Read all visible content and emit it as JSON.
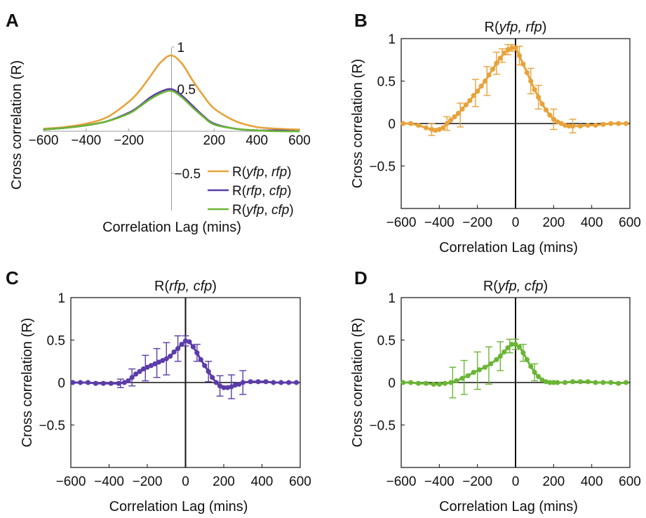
{
  "panels": {
    "A": "A",
    "B": "B",
    "C": "C",
    "D": "D"
  },
  "colors": {
    "yfp_rfp": "#E8A23A",
    "rfp_cfp": "#5B3CA8",
    "yfp_cfp": "#6BB536",
    "axis": "#111111"
  },
  "chart_data": [
    {
      "panel": "A",
      "type": "line",
      "title": "",
      "xlabel": "Correlation Lag (mins)",
      "ylabel": "Cross correlation (R)",
      "xlim": [
        -600,
        600
      ],
      "ylim": [
        -1,
        1
      ],
      "xticks": [
        "−600",
        "−400",
        "−200",
        "200",
        "400",
        "600"
      ],
      "yticks": [
        "1",
        "0.5",
        "−0.5"
      ],
      "axes_through_origin": true,
      "legend": {
        "placement": "bottom-right",
        "entries": [
          {
            "prefix": "R(",
            "a": "yfp",
            "b": "rfp",
            "suffix": ")",
            "color_key": "yfp_rfp"
          },
          {
            "prefix": "R(",
            "a": "rfp",
            "b": "cfp",
            "suffix": ")",
            "color_key": "rfp_cfp"
          },
          {
            "prefix": "R(",
            "a": "yfp",
            "b": "cfp",
            "suffix": ")",
            "color_key": "yfp_cfp"
          }
        ]
      },
      "series": [
        {
          "color_key": "yfp_rfp",
          "x": [
            -600,
            -500,
            -400,
            -300,
            -200,
            -150,
            -100,
            -50,
            0,
            50,
            100,
            150,
            200,
            300,
            400,
            500,
            600
          ],
          "y": [
            0.03,
            0.05,
            0.09,
            0.17,
            0.35,
            0.48,
            0.65,
            0.82,
            0.9,
            0.8,
            0.6,
            0.42,
            0.27,
            0.12,
            0.05,
            0.03,
            0.02
          ]
        },
        {
          "color_key": "rfp_cfp",
          "x": [
            -600,
            -500,
            -400,
            -300,
            -200,
            -150,
            -100,
            -50,
            0,
            50,
            100,
            150,
            200,
            300,
            400,
            500,
            600
          ],
          "y": [
            0.02,
            0.04,
            0.07,
            0.12,
            0.22,
            0.3,
            0.4,
            0.47,
            0.5,
            0.42,
            0.3,
            0.18,
            0.09,
            0.03,
            0.01,
            0.01,
            0.0
          ]
        },
        {
          "color_key": "yfp_cfp",
          "x": [
            -600,
            -500,
            -400,
            -300,
            -200,
            -150,
            -100,
            -50,
            0,
            50,
            100,
            150,
            200,
            300,
            400,
            500,
            600
          ],
          "y": [
            0.02,
            0.04,
            0.07,
            0.12,
            0.21,
            0.29,
            0.38,
            0.45,
            0.48,
            0.4,
            0.28,
            0.17,
            0.08,
            0.03,
            0.01,
            0.0,
            0.0
          ]
        }
      ]
    },
    {
      "panel": "B",
      "type": "scatter",
      "title_prefix": "R(",
      "title_a": "yfp",
      "title_b": "rfp",
      "title_suffix": ")",
      "xlabel": "Correlation Lag (mins)",
      "ylabel": "Cross correlation (R)",
      "xlim": [
        -600,
        600
      ],
      "ylim": [
        -1,
        1
      ],
      "xticks": [
        "−600",
        "−400",
        "−200",
        "0",
        "200",
        "400",
        "600"
      ],
      "yticks": [
        "1",
        "0.5",
        "0",
        "−0.5"
      ],
      "color_key": "yfp_rfp",
      "points": {
        "x": [
          -590,
          -550,
          -510,
          -470,
          -440,
          -420,
          -400,
          -380,
          -360,
          -340,
          -320,
          -300,
          -280,
          -260,
          -240,
          -220,
          -200,
          -180,
          -160,
          -140,
          -120,
          -100,
          -80,
          -60,
          -40,
          -20,
          0,
          20,
          40,
          60,
          80,
          100,
          120,
          140,
          160,
          180,
          200,
          220,
          240,
          260,
          280,
          300,
          340,
          380,
          420,
          460,
          500,
          540,
          580
        ],
        "y": [
          0.0,
          0.0,
          -0.02,
          -0.05,
          -0.07,
          -0.08,
          -0.07,
          -0.05,
          0.0,
          0.04,
          0.08,
          0.12,
          0.17,
          0.22,
          0.27,
          0.33,
          0.38,
          0.44,
          0.5,
          0.57,
          0.64,
          0.71,
          0.77,
          0.83,
          0.87,
          0.89,
          0.89,
          0.8,
          0.7,
          0.6,
          0.5,
          0.4,
          0.31,
          0.23,
          0.16,
          0.1,
          0.05,
          0.02,
          0.0,
          -0.02,
          -0.03,
          -0.03,
          -0.03,
          -0.02,
          -0.02,
          -0.01,
          0.0,
          0.0,
          0.0
        ]
      },
      "error_bars": {
        "x": [
          -440,
          -360,
          -290,
          -210,
          -150,
          -100,
          -70,
          -40,
          -20,
          20,
          80,
          120,
          200,
          300
        ],
        "y": [
          -0.07,
          0.0,
          0.1,
          0.36,
          0.5,
          0.71,
          0.8,
          0.87,
          0.89,
          0.8,
          0.5,
          0.31,
          0.05,
          -0.03
        ],
        "err": [
          0.07,
          0.08,
          0.14,
          0.16,
          0.17,
          0.13,
          0.08,
          0.06,
          0.04,
          0.11,
          0.15,
          0.14,
          0.12,
          0.08
        ]
      }
    },
    {
      "panel": "C",
      "type": "scatter",
      "title_prefix": "R(",
      "title_a": "rfp",
      "title_b": "cfp",
      "title_suffix": ")",
      "xlabel": "Correlation Lag (mins)",
      "ylabel": "Cross correlation (R)",
      "xlim": [
        -600,
        600
      ],
      "ylim": [
        -1,
        1
      ],
      "xticks": [
        "−600",
        "−400",
        "−200",
        "0",
        "200",
        "400",
        "600"
      ],
      "yticks": [
        "1",
        "0.5",
        "0",
        "−0.5"
      ],
      "color_key": "rfp_cfp",
      "points": {
        "x": [
          -590,
          -550,
          -510,
          -470,
          -430,
          -390,
          -350,
          -320,
          -300,
          -280,
          -260,
          -240,
          -220,
          -200,
          -180,
          -160,
          -140,
          -120,
          -100,
          -80,
          -60,
          -40,
          -20,
          0,
          20,
          40,
          60,
          80,
          100,
          120,
          140,
          160,
          180,
          200,
          220,
          240,
          260,
          280,
          300,
          340,
          380,
          420,
          460,
          500,
          540,
          580
        ],
        "y": [
          0.0,
          0.0,
          0.0,
          -0.01,
          -0.01,
          -0.01,
          -0.01,
          0.0,
          0.02,
          0.06,
          0.1,
          0.13,
          0.16,
          0.18,
          0.2,
          0.22,
          0.24,
          0.26,
          0.28,
          0.31,
          0.36,
          0.4,
          0.45,
          0.49,
          0.48,
          0.42,
          0.35,
          0.27,
          0.2,
          0.13,
          0.06,
          0.0,
          -0.04,
          -0.06,
          -0.06,
          -0.05,
          -0.03,
          -0.02,
          0.0,
          0.01,
          0.01,
          0.01,
          0.0,
          0.0,
          0.0,
          0.0
        ]
      },
      "error_bars": {
        "x": [
          -340,
          -280,
          -210,
          -150,
          -100,
          -40,
          0,
          60,
          120,
          180,
          240,
          300
        ],
        "y": [
          -0.01,
          0.06,
          0.17,
          0.23,
          0.28,
          0.4,
          0.49,
          0.35,
          0.13,
          -0.04,
          -0.05,
          0.0
        ],
        "err": [
          0.05,
          0.1,
          0.15,
          0.17,
          0.19,
          0.15,
          0.06,
          0.1,
          0.12,
          0.12,
          0.14,
          0.14
        ]
      }
    },
    {
      "panel": "D",
      "type": "scatter",
      "title_prefix": "R(",
      "title_a": "yfp",
      "title_b": "cfp",
      "title_suffix": ")",
      "xlabel": "Correlation Lag (mins)",
      "ylabel": "Cross correlation (R)",
      "xlim": [
        -600,
        600
      ],
      "ylim": [
        -1,
        1
      ],
      "xticks": [
        "−600",
        "−400",
        "−200",
        "0",
        "200",
        "400",
        "600"
      ],
      "yticks": [
        "1",
        "0.5",
        "0",
        "−0.5"
      ],
      "color_key": "yfp_cfp",
      "points": {
        "x": [
          -590,
          -550,
          -510,
          -470,
          -430,
          -400,
          -370,
          -340,
          -310,
          -280,
          -250,
          -220,
          -190,
          -160,
          -130,
          -100,
          -80,
          -60,
          -40,
          -20,
          0,
          20,
          40,
          60,
          80,
          100,
          120,
          140,
          160,
          180,
          200,
          220,
          260,
          300,
          340,
          380,
          420,
          460,
          500,
          540,
          580
        ],
        "y": [
          0.0,
          0.0,
          -0.01,
          -0.01,
          -0.02,
          -0.02,
          -0.01,
          0.0,
          0.02,
          0.05,
          0.08,
          0.12,
          0.15,
          0.18,
          0.22,
          0.27,
          0.31,
          0.36,
          0.41,
          0.45,
          0.45,
          0.42,
          0.35,
          0.27,
          0.19,
          0.12,
          0.07,
          0.03,
          0.01,
          0.0,
          0.0,
          0.0,
          0.0,
          0.01,
          0.01,
          0.01,
          0.0,
          0.0,
          0.0,
          -0.01,
          0.0
        ]
      },
      "error_bars": {
        "x": [
          -330,
          -270,
          -200,
          -140,
          -80,
          -30,
          0,
          40,
          100
        ],
        "y": [
          0.0,
          0.06,
          0.14,
          0.2,
          0.31,
          0.43,
          0.45,
          0.35,
          0.12
        ],
        "err": [
          0.18,
          0.2,
          0.22,
          0.22,
          0.17,
          0.08,
          0.06,
          0.1,
          0.1
        ]
      }
    }
  ]
}
